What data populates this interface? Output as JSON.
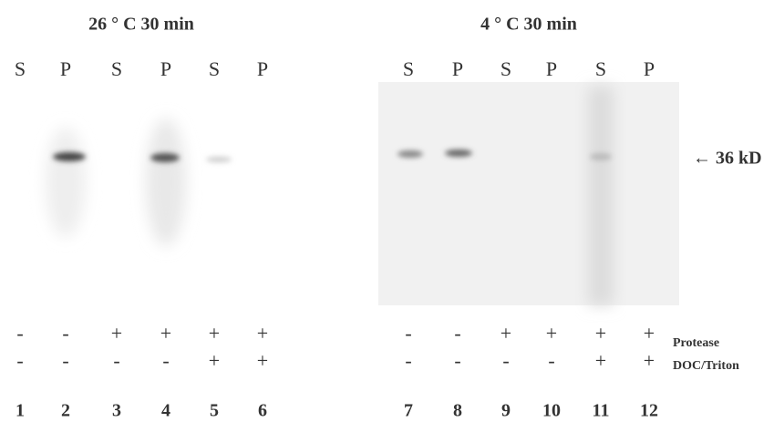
{
  "panels": [
    {
      "title": "26 ° C  30 min",
      "lanes": [
        {
          "label": "S",
          "protease": "-",
          "detergent": "-",
          "number": "1"
        },
        {
          "label": "P",
          "protease": "-",
          "detergent": "-",
          "number": "2"
        },
        {
          "label": "S",
          "protease": "+",
          "detergent": "-",
          "number": "3"
        },
        {
          "label": "P",
          "protease": "+",
          "detergent": "-",
          "number": "4"
        },
        {
          "label": "S",
          "protease": "+",
          "detergent": "+",
          "number": "5"
        },
        {
          "label": "P",
          "protease": "+",
          "detergent": "+",
          "number": "6"
        }
      ]
    },
    {
      "title": "4 ° C  30 min",
      "lanes": [
        {
          "label": "S",
          "protease": "-",
          "detergent": "-",
          "number": "7"
        },
        {
          "label": "P",
          "protease": "-",
          "detergent": "-",
          "number": "8"
        },
        {
          "label": "S",
          "protease": "+",
          "detergent": "-",
          "number": "9"
        },
        {
          "label": "P",
          "protease": "+",
          "detergent": "-",
          "number": "10"
        },
        {
          "label": "S",
          "protease": "+",
          "detergent": "+",
          "number": "11"
        },
        {
          "label": "P",
          "protease": "+",
          "detergent": "+",
          "number": "12"
        }
      ]
    }
  ],
  "marker": "← 36 kD",
  "row_labels": {
    "protease": "Protease",
    "detergent": "DOC/Triton"
  }
}
